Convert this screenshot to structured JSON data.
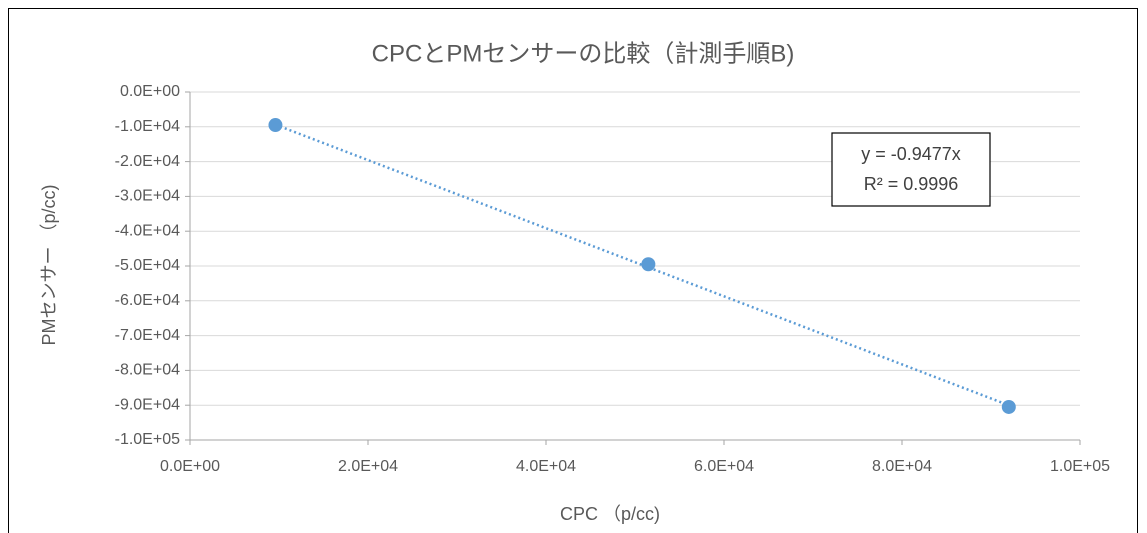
{
  "chart_data": {
    "type": "scatter",
    "title": "CPCとPMセンサーの比較（計測手順B)",
    "x_label": "CPC （p/cc)",
    "y_label": "PMセンサー （p/cc)",
    "series": [
      {
        "name": "PMセンサー",
        "color": "#5b9bd5",
        "x": [
          9600,
          51500,
          92000
        ],
        "values": [
          -9500,
          -49500,
          -90500
        ]
      }
    ],
    "trendline": {
      "style": "dotted",
      "annotation": [
        "y = -0.9477x",
        "R² = 0.9996"
      ]
    },
    "xlim": [
      0,
      100000
    ],
    "xticks": [
      {
        "value": 0,
        "label": "0.0E+00"
      },
      {
        "value": 20000,
        "label": "2.0E+04"
      },
      {
        "value": 40000,
        "label": "4.0E+04"
      },
      {
        "value": 60000,
        "label": "6.0E+04"
      },
      {
        "value": 80000,
        "label": "8.0E+04"
      },
      {
        "value": 100000,
        "label": "1.0E+05"
      }
    ],
    "ylim": [
      -100000,
      0
    ],
    "yticks": [
      {
        "value": 0,
        "label": "0.0E+00"
      },
      {
        "value": -10000,
        "label": "-1.0E+04"
      },
      {
        "value": -20000,
        "label": "-2.0E+04"
      },
      {
        "value": -30000,
        "label": "-3.0E+04"
      },
      {
        "value": -40000,
        "label": "-4.0E+04"
      },
      {
        "value": -50000,
        "label": "-5.0E+04"
      },
      {
        "value": -60000,
        "label": "-6.0E+04"
      },
      {
        "value": -70000,
        "label": "-7.0E+04"
      },
      {
        "value": -80000,
        "label": "-8.0E+04"
      },
      {
        "value": -90000,
        "label": "-9.0E+04"
      },
      {
        "value": -100000,
        "label": "-1.0E+05"
      }
    ],
    "grid": true
  }
}
